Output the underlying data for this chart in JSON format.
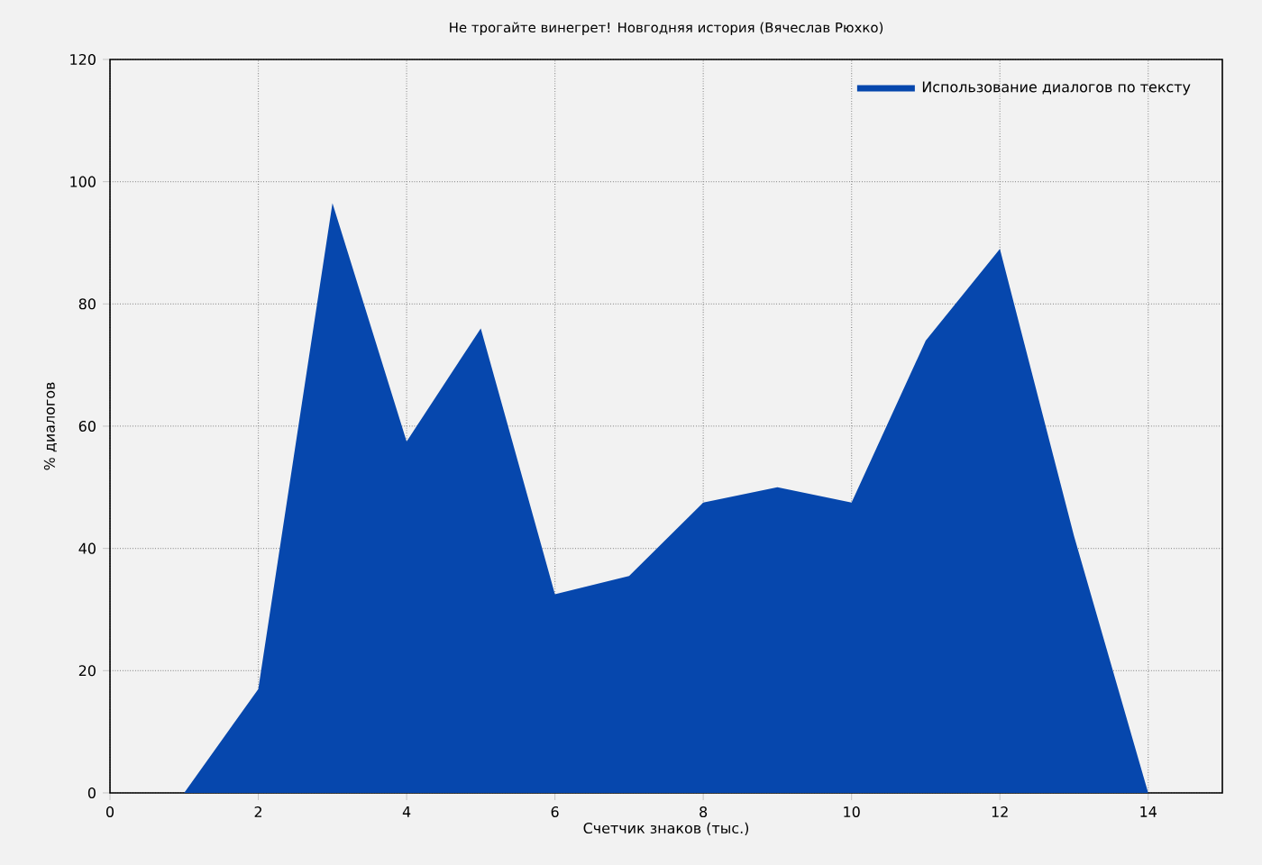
{
  "chart_data": {
    "type": "area",
    "title": "Не трогайте винегрет! Новгодняя история (Вячеслав Рюхко)",
    "xlabel": "Счетчик знаков (тыс.)",
    "ylabel": "% диалогов",
    "x": [
      1,
      2,
      3,
      4,
      5,
      6,
      7,
      8,
      9,
      10,
      11,
      12,
      13,
      14
    ],
    "series": [
      {
        "name": "Использование диалогов по тексту",
        "color": "#0647ad",
        "values": [
          0,
          17,
          96.5,
          57.5,
          76,
          32.5,
          35.5,
          47.5,
          50,
          47.5,
          74,
          89,
          42,
          0
        ]
      }
    ],
    "xlim": [
      0,
      15
    ],
    "ylim": [
      0,
      120
    ],
    "xticks": [
      0,
      2,
      4,
      6,
      8,
      10,
      12,
      14
    ],
    "yticks": [
      0,
      20,
      40,
      60,
      80,
      100,
      120
    ],
    "grid": true,
    "legend": "top right"
  }
}
